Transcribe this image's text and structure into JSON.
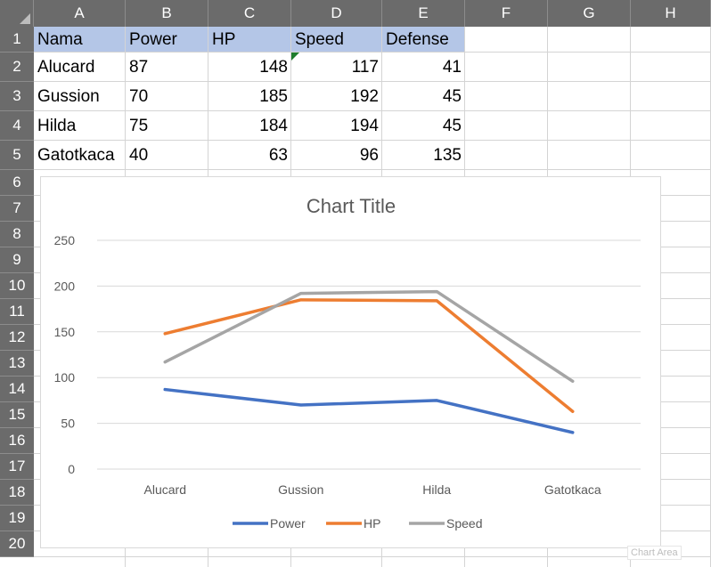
{
  "sheet": {
    "columns": [
      "A",
      "B",
      "C",
      "D",
      "E",
      "F",
      "G",
      "H"
    ],
    "rows": [
      "1",
      "2",
      "3",
      "4",
      "5",
      "6",
      "7",
      "8",
      "9",
      "10",
      "11",
      "12",
      "13",
      "14",
      "15",
      "16",
      "17",
      "18",
      "19",
      "20"
    ],
    "headers": [
      "Nama",
      "Power",
      "HP",
      "Speed",
      "Defense"
    ],
    "data": [
      [
        "Alucard",
        "87",
        "148",
        "117",
        "41"
      ],
      [
        "Gussion",
        "70",
        "185",
        "192",
        "45"
      ],
      [
        "Hilda",
        "75",
        "184",
        "194",
        "45"
      ],
      [
        "Gatotkaca",
        "40",
        "63",
        "96",
        "135"
      ]
    ],
    "header_fill": "#b4c6e7"
  },
  "chart_data": {
    "type": "line",
    "title": "Chart Title",
    "categories": [
      "Alucard",
      "Gussion",
      "Hilda",
      "Gatotkaca"
    ],
    "series": [
      {
        "name": "Power",
        "values": [
          87,
          70,
          75,
          40
        ],
        "color": "#4472c4"
      },
      {
        "name": "HP",
        "values": [
          148,
          185,
          184,
          63
        ],
        "color": "#ed7d31"
      },
      {
        "name": "Speed",
        "values": [
          117,
          192,
          194,
          96
        ],
        "color": "#a5a5a5"
      }
    ],
    "ylim": [
      0,
      250
    ],
    "yticks": [
      "0",
      "50",
      "100",
      "150",
      "200",
      "250"
    ],
    "grid": true,
    "legend_position": "bottom"
  },
  "tooltip": "Chart Area"
}
